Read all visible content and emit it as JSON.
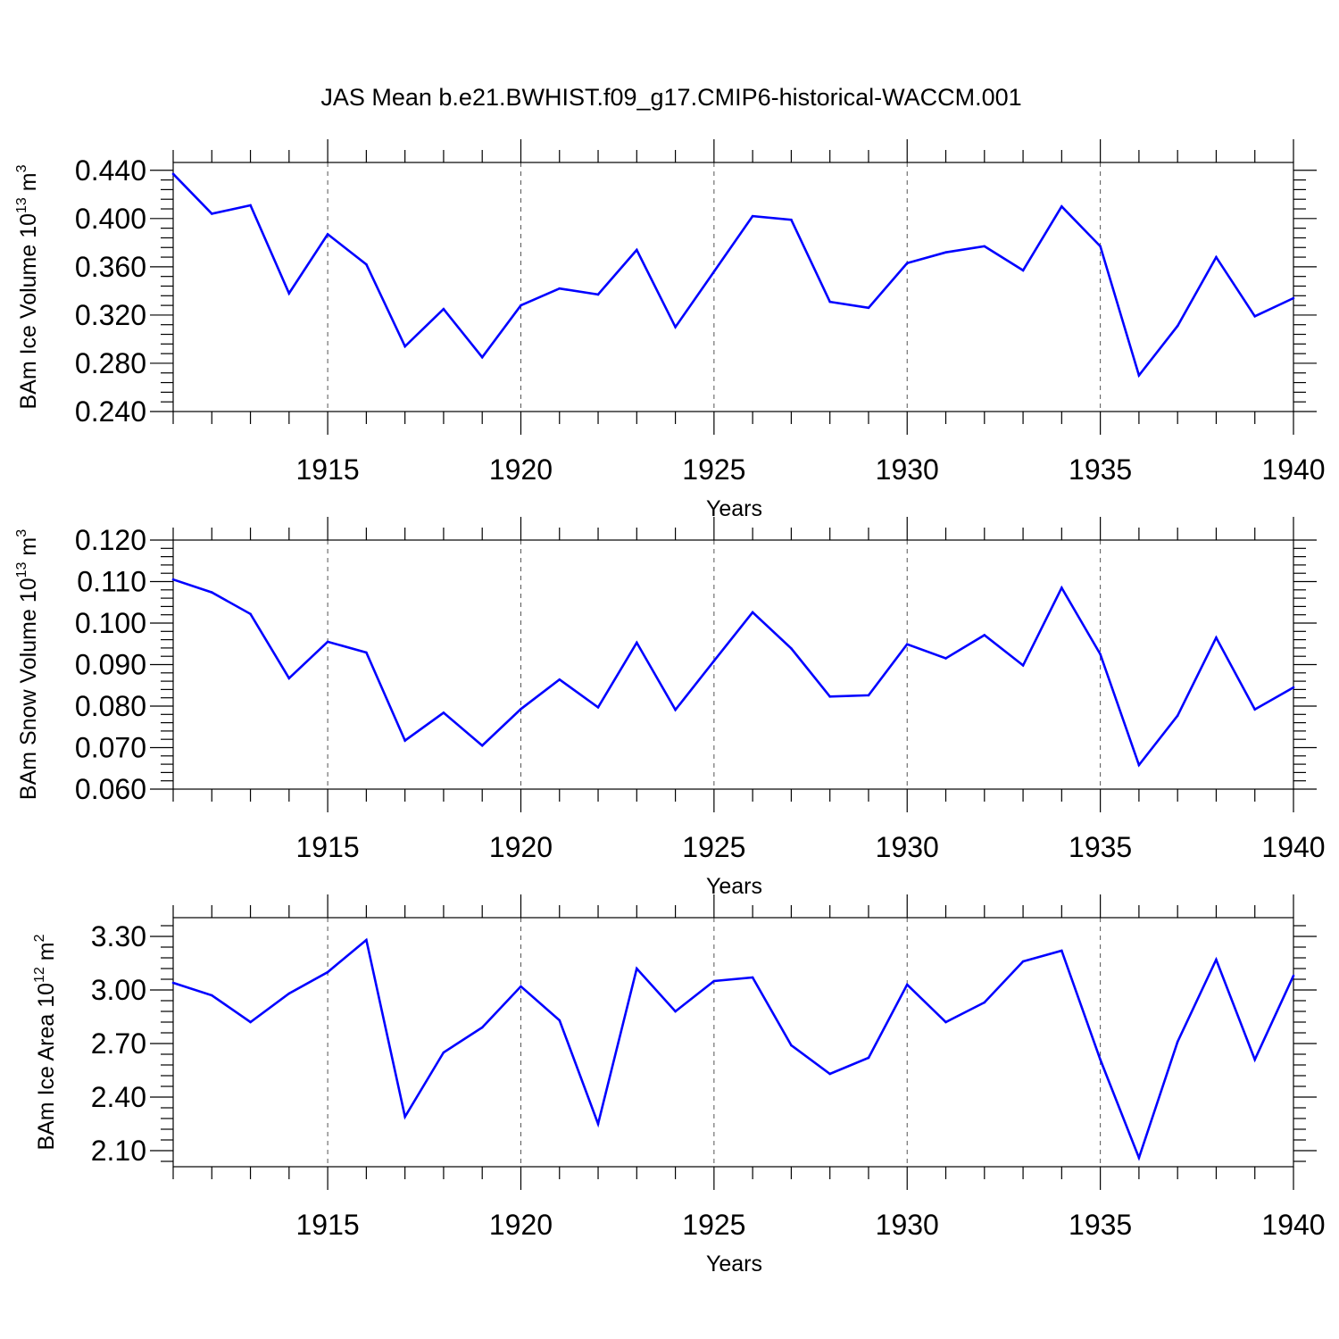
{
  "title": "JAS Mean b.e21.BWHIST.f09_g17.CMIP6-historical-WACCM.001",
  "colors": {
    "line": "#0000ff",
    "axis": "#000000",
    "grid": "#555555"
  },
  "chart_data": [
    {
      "type": "line",
      "name": "ice-volume",
      "ylabel": {
        "main": "BAm Ice Volume 10",
        "exp": "13",
        "unit": " m",
        "unit_exp": "3"
      },
      "xlabel": "Years",
      "xlim": [
        1911,
        1940
      ],
      "ylim": [
        0.24,
        0.4465
      ],
      "yticks": [
        "0.240",
        "0.280",
        "0.320",
        "0.360",
        "0.400",
        "0.440"
      ],
      "xticks": [
        "1915",
        "1920",
        "1925",
        "1930",
        "1935",
        "1940"
      ],
      "x": [
        1911,
        1912,
        1913,
        1914,
        1915,
        1916,
        1917,
        1918,
        1919,
        1920,
        1921,
        1922,
        1923,
        1924,
        1925,
        1926,
        1927,
        1928,
        1929,
        1930,
        1931,
        1932,
        1933,
        1934,
        1935,
        1936,
        1937,
        1938,
        1939,
        1940
      ],
      "values": [
        0.437,
        0.404,
        0.411,
        0.338,
        0.387,
        0.362,
        0.294,
        0.325,
        0.285,
        0.328,
        0.342,
        0.337,
        0.374,
        0.31,
        0.356,
        0.402,
        0.399,
        0.331,
        0.326,
        0.363,
        0.372,
        0.377,
        0.357,
        0.41,
        0.377,
        0.27,
        0.311,
        0.368,
        0.319,
        0.334
      ]
    },
    {
      "type": "line",
      "name": "snow-volume",
      "ylabel": {
        "main": "BAm Snow Volume 10",
        "exp": "13",
        "unit": " m",
        "unit_exp": "3"
      },
      "xlabel": "Years",
      "xlim": [
        1911,
        1940
      ],
      "ylim": [
        0.06,
        0.12
      ],
      "yticks": [
        "0.060",
        "0.070",
        "0.080",
        "0.090",
        "0.100",
        "0.110",
        "0.120"
      ],
      "xticks": [
        "1915",
        "1920",
        "1925",
        "1930",
        "1935",
        "1940"
      ],
      "x": [
        1911,
        1912,
        1913,
        1914,
        1915,
        1916,
        1917,
        1918,
        1919,
        1920,
        1921,
        1922,
        1923,
        1924,
        1925,
        1926,
        1927,
        1928,
        1929,
        1930,
        1931,
        1932,
        1933,
        1934,
        1935,
        1936,
        1937,
        1938,
        1939,
        1940
      ],
      "values": [
        0.1105,
        0.1074,
        0.1022,
        0.0867,
        0.0955,
        0.0929,
        0.0717,
        0.0784,
        0.0705,
        0.0793,
        0.0864,
        0.0797,
        0.0953,
        0.0791,
        0.0909,
        0.1026,
        0.0939,
        0.0823,
        0.0826,
        0.0949,
        0.0915,
        0.0971,
        0.0898,
        0.1085,
        0.0925,
        0.0658,
        0.0777,
        0.0965,
        0.0792,
        0.0845
      ]
    },
    {
      "type": "line",
      "name": "ice-area",
      "ylabel": {
        "main": "BAm Ice Area 10",
        "exp": "12",
        "unit": " m",
        "unit_exp": "2"
      },
      "xlabel": "Years",
      "xlim": [
        1911,
        1940
      ],
      "ylim": [
        2.01,
        3.405
      ],
      "yticks": [
        "2.10",
        "2.40",
        "2.70",
        "3.00",
        "3.30"
      ],
      "xticks": [
        "1915",
        "1920",
        "1925",
        "1930",
        "1935",
        "1940"
      ],
      "x": [
        1911,
        1912,
        1913,
        1914,
        1915,
        1916,
        1917,
        1918,
        1919,
        1920,
        1921,
        1922,
        1923,
        1924,
        1925,
        1926,
        1927,
        1928,
        1929,
        1930,
        1931,
        1932,
        1933,
        1934,
        1935,
        1936,
        1937,
        1938,
        1939,
        1940
      ],
      "values": [
        3.04,
        2.97,
        2.82,
        2.98,
        3.1,
        3.28,
        2.29,
        2.65,
        2.79,
        3.02,
        2.83,
        2.25,
        3.12,
        2.88,
        3.05,
        3.07,
        2.69,
        2.53,
        2.62,
        3.03,
        2.82,
        2.93,
        3.16,
        3.22,
        2.61,
        2.06,
        2.71,
        3.17,
        2.61,
        3.08
      ]
    }
  ]
}
